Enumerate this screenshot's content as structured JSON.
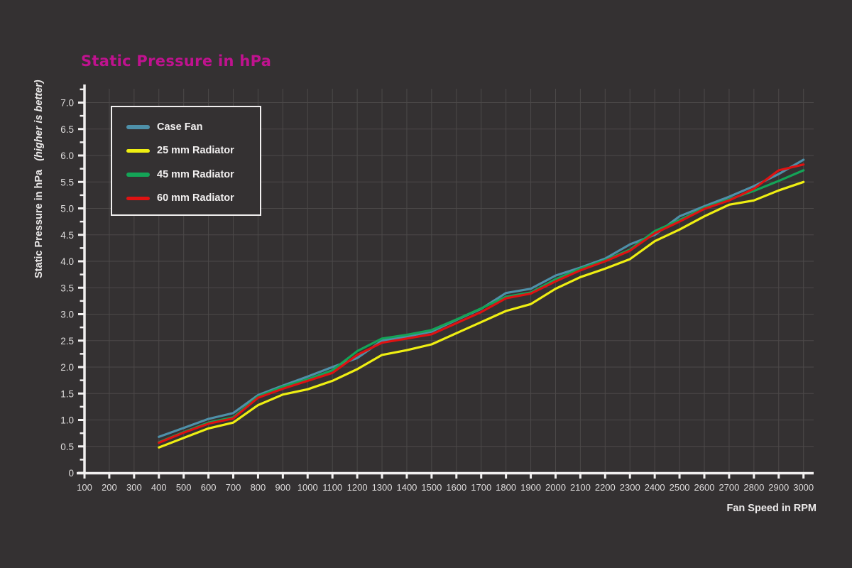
{
  "chart_data": {
    "type": "line",
    "title": "Static Pressure in hPa",
    "xlabel": "Fan Speed in RPM",
    "ylabel": "Static Pressure in hPa",
    "ylabel_note": "(higher is better)",
    "title_color": "#c0128f",
    "background_color": "#343132",
    "grid_color": "#4c4949",
    "axis_color": "#f2f0f0",
    "tick_label_color": "#dfdddd",
    "grid": true,
    "legend_position": "top-left",
    "x_axis": {
      "min": 100,
      "max": 3000,
      "step": 100,
      "tick_labels": [
        "100",
        "200",
        "300",
        "400",
        "500",
        "600",
        "700",
        "800",
        "900",
        "1000",
        "1100",
        "1200",
        "1300",
        "1400",
        "1500",
        "1600",
        "1700",
        "1800",
        "1900",
        "2000",
        "2100",
        "2200",
        "2300",
        "2400",
        "2500",
        "2600",
        "2700",
        "2800",
        "2900",
        "3000"
      ]
    },
    "y_axis": {
      "min": 0,
      "max": 7,
      "step": 0.5,
      "minor_step": 0.25,
      "tick_labels": [
        "0",
        "0.5",
        "1.0",
        "1.5",
        "2.0",
        "2.5",
        "3.0",
        "3.5",
        "4.0",
        "4.5",
        "5.0",
        "5.5",
        "6.0",
        "6.5",
        "7.0"
      ]
    },
    "x": [
      400,
      500,
      600,
      700,
      800,
      900,
      1000,
      1100,
      1200,
      1300,
      1400,
      1500,
      1600,
      1700,
      1800,
      1900,
      2000,
      2100,
      2200,
      2300,
      2400,
      2500,
      2600,
      2700,
      2800,
      2900,
      3000
    ],
    "series": [
      {
        "name": "Case Fan",
        "color": "#4e90a9",
        "values": [
          0.68,
          0.85,
          1.02,
          1.13,
          1.47,
          1.65,
          1.82,
          2.0,
          2.17,
          2.5,
          2.58,
          2.67,
          2.89,
          3.1,
          3.4,
          3.48,
          3.73,
          3.88,
          4.05,
          4.32,
          4.5,
          4.85,
          5.04,
          5.22,
          5.42,
          5.65,
          5.92
        ]
      },
      {
        "name": "25 mm Radiator",
        "color": "#efef12",
        "values": [
          0.48,
          0.66,
          0.84,
          0.95,
          1.28,
          1.48,
          1.58,
          1.74,
          1.96,
          2.23,
          2.32,
          2.43,
          2.64,
          2.85,
          3.06,
          3.19,
          3.48,
          3.7,
          3.86,
          4.04,
          4.38,
          4.6,
          4.85,
          5.07,
          5.15,
          5.34,
          5.5
        ]
      },
      {
        "name": "45 mm Radiator",
        "color": "#14a457",
        "values": [
          0.58,
          0.77,
          0.95,
          1.05,
          1.44,
          1.63,
          1.77,
          1.94,
          2.3,
          2.54,
          2.61,
          2.7,
          2.9,
          3.11,
          3.33,
          3.41,
          3.66,
          3.86,
          4.02,
          4.22,
          4.57,
          4.78,
          5.01,
          5.17,
          5.33,
          5.52,
          5.72
        ]
      },
      {
        "name": "60 mm Radiator",
        "color": "#df1212",
        "values": [
          0.57,
          0.76,
          0.93,
          1.03,
          1.42,
          1.59,
          1.74,
          1.89,
          2.23,
          2.46,
          2.54,
          2.62,
          2.83,
          3.04,
          3.3,
          3.39,
          3.62,
          3.83,
          4.0,
          4.2,
          4.53,
          4.75,
          4.99,
          5.15,
          5.37,
          5.72,
          5.83
        ]
      }
    ]
  }
}
